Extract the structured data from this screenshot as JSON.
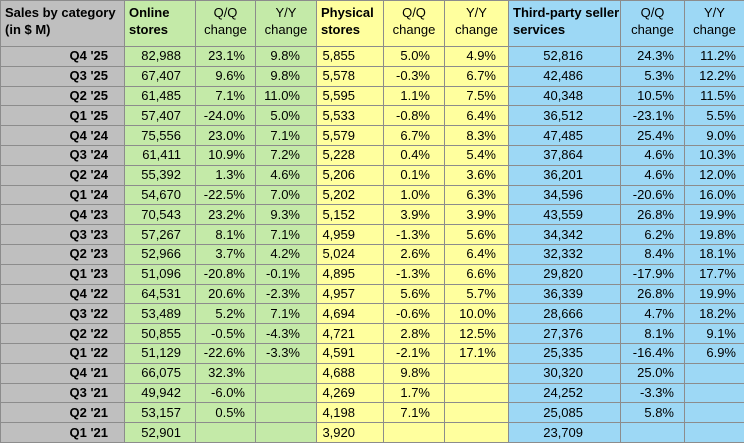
{
  "table": {
    "header": [
      "Sales by category (in $ M)",
      "Online stores",
      "Q/Q change",
      "Y/Y change",
      "Physical stores",
      "Q/Q change",
      "Y/Y change",
      "Third-party seller services",
      "Q/Q change",
      "Y/Y change"
    ],
    "rows": [
      [
        "Q4 '25",
        "82,988",
        "23.1%",
        "9.8%",
        "5,855",
        "5.0%",
        "4.9%",
        "52,816",
        "24.3%",
        "11.2%"
      ],
      [
        "Q3 '25",
        "67,407",
        "9.6%",
        "9.8%",
        "5,578",
        "-0.3%",
        "6.7%",
        "42,486",
        "5.3%",
        "12.2%"
      ],
      [
        "Q2 '25",
        "61,485",
        "7.1%",
        "11.0%",
        "5,595",
        "1.1%",
        "7.5%",
        "40,348",
        "10.5%",
        "11.5%"
      ],
      [
        "Q1 '25",
        "57,407",
        "-24.0%",
        "5.0%",
        "5,533",
        "-0.8%",
        "6.4%",
        "36,512",
        "-23.1%",
        "5.5%"
      ],
      [
        "Q4 '24",
        "75,556",
        "23.0%",
        "7.1%",
        "5,579",
        "6.7%",
        "8.3%",
        "47,485",
        "25.4%",
        "9.0%"
      ],
      [
        "Q3 '24",
        "61,411",
        "10.9%",
        "7.2%",
        "5,228",
        "0.4%",
        "5.4%",
        "37,864",
        "4.6%",
        "10.3%"
      ],
      [
        "Q2 '24",
        "55,392",
        "1.3%",
        "4.6%",
        "5,206",
        "0.1%",
        "3.6%",
        "36,201",
        "4.6%",
        "12.0%"
      ],
      [
        "Q1 '24",
        "54,670",
        "-22.5%",
        "7.0%",
        "5,202",
        "1.0%",
        "6.3%",
        "34,596",
        "-20.6%",
        "16.0%"
      ],
      [
        "Q4 '23",
        "70,543",
        "23.2%",
        "9.3%",
        "5,152",
        "3.9%",
        "3.9%",
        "43,559",
        "26.8%",
        "19.9%"
      ],
      [
        "Q3 '23",
        "57,267",
        "8.1%",
        "7.1%",
        "4,959",
        "-1.3%",
        "5.6%",
        "34,342",
        "6.2%",
        "19.8%"
      ],
      [
        "Q2 '23",
        "52,966",
        "3.7%",
        "4.2%",
        "5,024",
        "2.6%",
        "6.4%",
        "32,332",
        "8.4%",
        "18.1%"
      ],
      [
        "Q1 '23",
        "51,096",
        "-20.8%",
        "-0.1%",
        "4,895",
        "-1.3%",
        "6.6%",
        "29,820",
        "-17.9%",
        "17.7%"
      ],
      [
        "Q4 '22",
        "64,531",
        "20.6%",
        "-2.3%",
        "4,957",
        "5.6%",
        "5.7%",
        "36,339",
        "26.8%",
        "19.9%"
      ],
      [
        "Q3 '22",
        "53,489",
        "5.2%",
        "7.1%",
        "4,694",
        "-0.6%",
        "10.0%",
        "28,666",
        "4.7%",
        "18.2%"
      ],
      [
        "Q2 '22",
        "50,855",
        "-0.5%",
        "-4.3%",
        "4,721",
        "2.8%",
        "12.5%",
        "27,376",
        "8.1%",
        "9.1%"
      ],
      [
        "Q1 '22",
        "51,129",
        "-22.6%",
        "-3.3%",
        "4,591",
        "-2.1%",
        "17.1%",
        "25,335",
        "-16.4%",
        "6.9%"
      ],
      [
        "Q4 '21",
        "66,075",
        "32.3%",
        null,
        "4,688",
        "9.8%",
        null,
        "30,320",
        "25.0%",
        null
      ],
      [
        "Q3 '21",
        "49,942",
        "-6.0%",
        null,
        "4,269",
        "1.7%",
        null,
        "24,252",
        "-3.3%",
        null
      ],
      [
        "Q2 '21",
        "53,157",
        "0.5%",
        null,
        "4,198",
        "7.1%",
        null,
        "25,085",
        "5.8%",
        null
      ],
      [
        "Q1 '21",
        "52,901",
        null,
        null,
        "3,920",
        null,
        null,
        "23,709",
        null,
        null
      ]
    ]
  }
}
